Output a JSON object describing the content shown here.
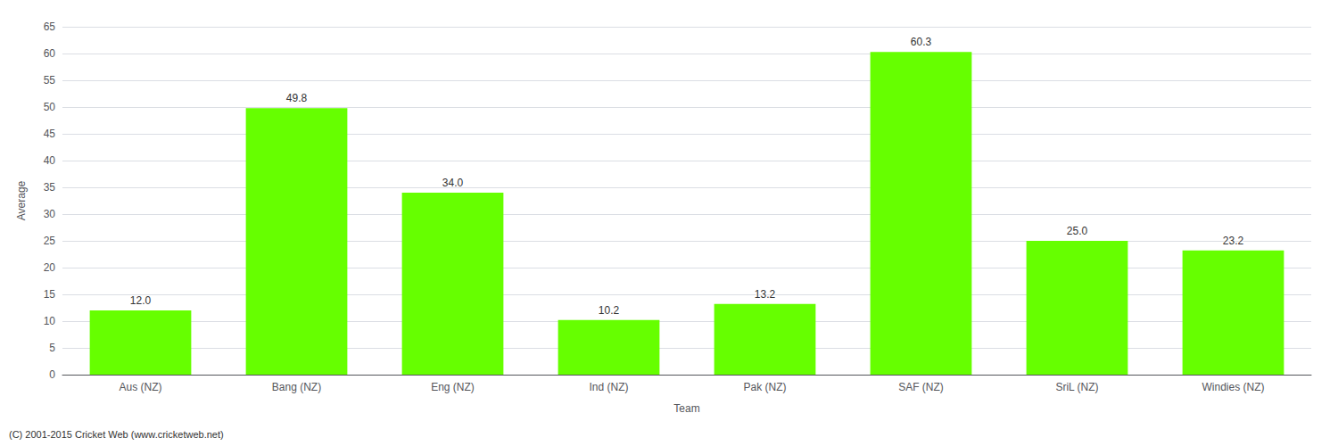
{
  "chart_data": {
    "type": "bar",
    "categories": [
      "Aus (NZ)",
      "Bang (NZ)",
      "Eng (NZ)",
      "Ind (NZ)",
      "Pak (NZ)",
      "SAF (NZ)",
      "SriL (NZ)",
      "Windies (NZ)"
    ],
    "values": [
      12.0,
      49.8,
      34.0,
      10.2,
      13.2,
      60.3,
      25.0,
      23.2
    ],
    "value_labels": [
      "12.0",
      "49.8",
      "34.0",
      "10.2",
      "13.2",
      "60.3",
      "25.0",
      "23.2"
    ],
    "data_labels": true,
    "color": "#66ff00",
    "xlabel": "Team",
    "ylabel": "Average",
    "ylim": [
      0,
      65
    ],
    "yticks": [
      0,
      5,
      10,
      15,
      20,
      25,
      30,
      35,
      40,
      45,
      50,
      55,
      60,
      65
    ],
    "grid": true,
    "annotations": [
      "(C) 2001-2015 Cricket Web (www.cricketweb.net)"
    ]
  }
}
